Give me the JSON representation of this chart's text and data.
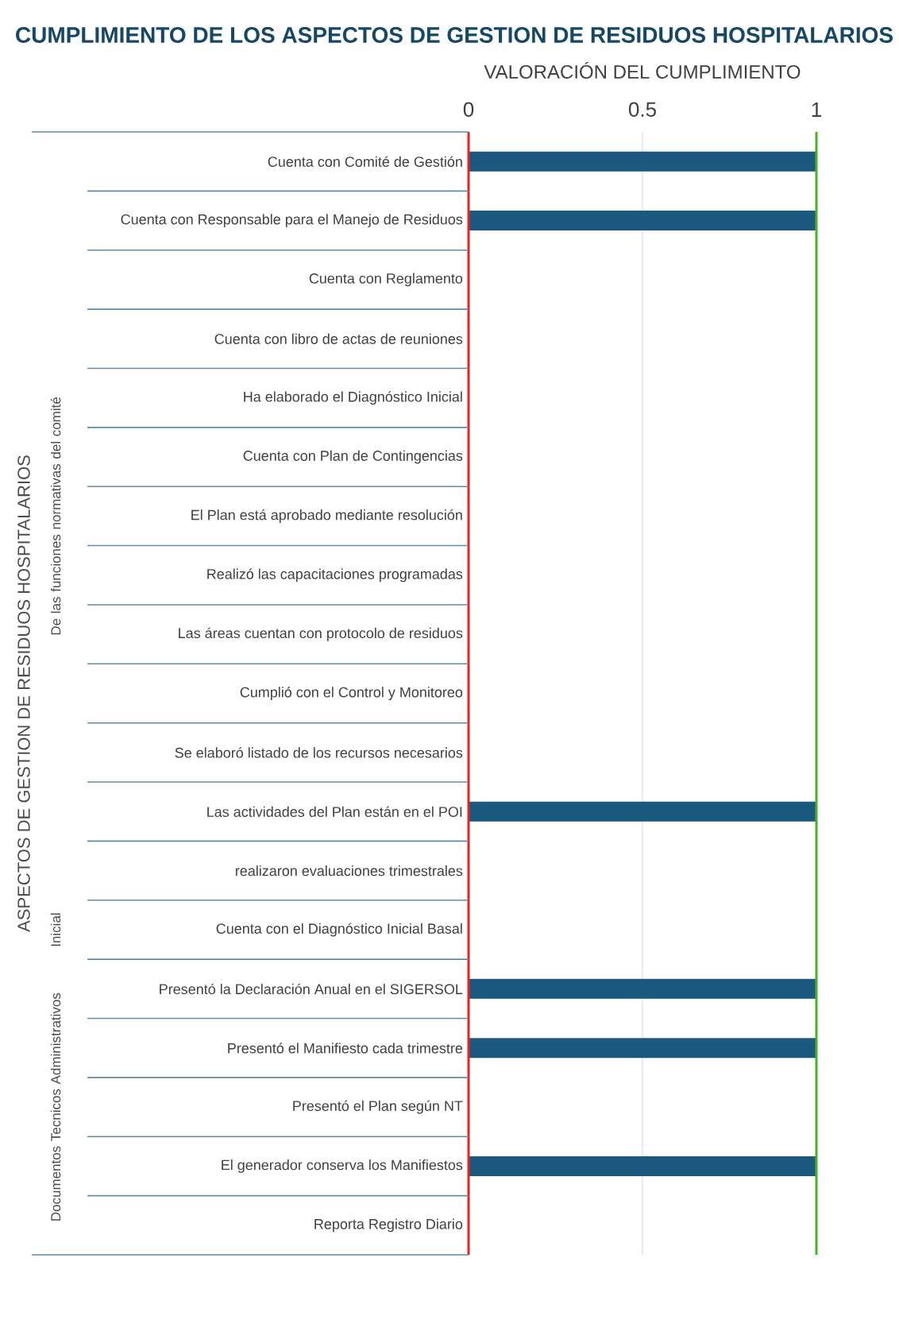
{
  "chart_data": {
    "type": "bar",
    "orientation": "horizontal",
    "title": "CUMPLIMIENTO DE LOS ASPECTOS DE GESTION DE RESIDUOS HOSPITALARIOS",
    "xlabel": "VALORACIÓN DEL CUMPLIMIENTO",
    "categories": [
      "Cuenta con Comité de Gestión",
      "Cuenta con Responsable para el Manejo de Residuos",
      "Cuenta con Reglamento",
      "Cuenta con libro de actas de reuniones",
      "Ha elaborado el Diagnóstico Inicial",
      "Cuenta con Plan de Contingencias",
      "El Plan está aprobado mediante resolución",
      "Realizó las capacitaciones programadas",
      "Las áreas cuentan con protocolo de residuos",
      "Cumplió con el Control y Monitoreo",
      "Se elaboró listado de los recursos necesarios",
      "Las actividades del Plan están en el POI",
      "realizaron evaluaciones trimestrales",
      "Cuenta con el Diagnóstico Inicial Basal",
      "Presentó la Declaración Anual en el SIGERSOL",
      "Presentó el Manifiesto cada trimestre",
      "Presentó el Plan según NT",
      "El generador conserva los Manifiestos",
      "Reporta Registro Diario"
    ],
    "values": [
      1,
      1,
      0,
      0,
      0,
      0,
      0,
      0,
      0,
      0,
      0,
      1,
      0,
      0,
      1,
      1,
      0,
      1,
      0
    ],
    "color": "#1b5a7e",
    "xlim": [
      0,
      1
    ],
    "xticks": [
      0,
      0.5,
      1
    ],
    "grid": "x",
    "ref_lines": [
      {
        "axis": "x",
        "value": 0,
        "color": "#e8231f"
      },
      {
        "axis": "x",
        "value": 1,
        "color": "#4caf2a"
      }
    ],
    "annotations": [
      "ASPECTOS DE GESTION DE RESIDUOS HOSPITALARIOS",
      "De las funciones normativas del comité",
      "Inicial",
      "Documentos Tecnicos Administrativos"
    ]
  }
}
